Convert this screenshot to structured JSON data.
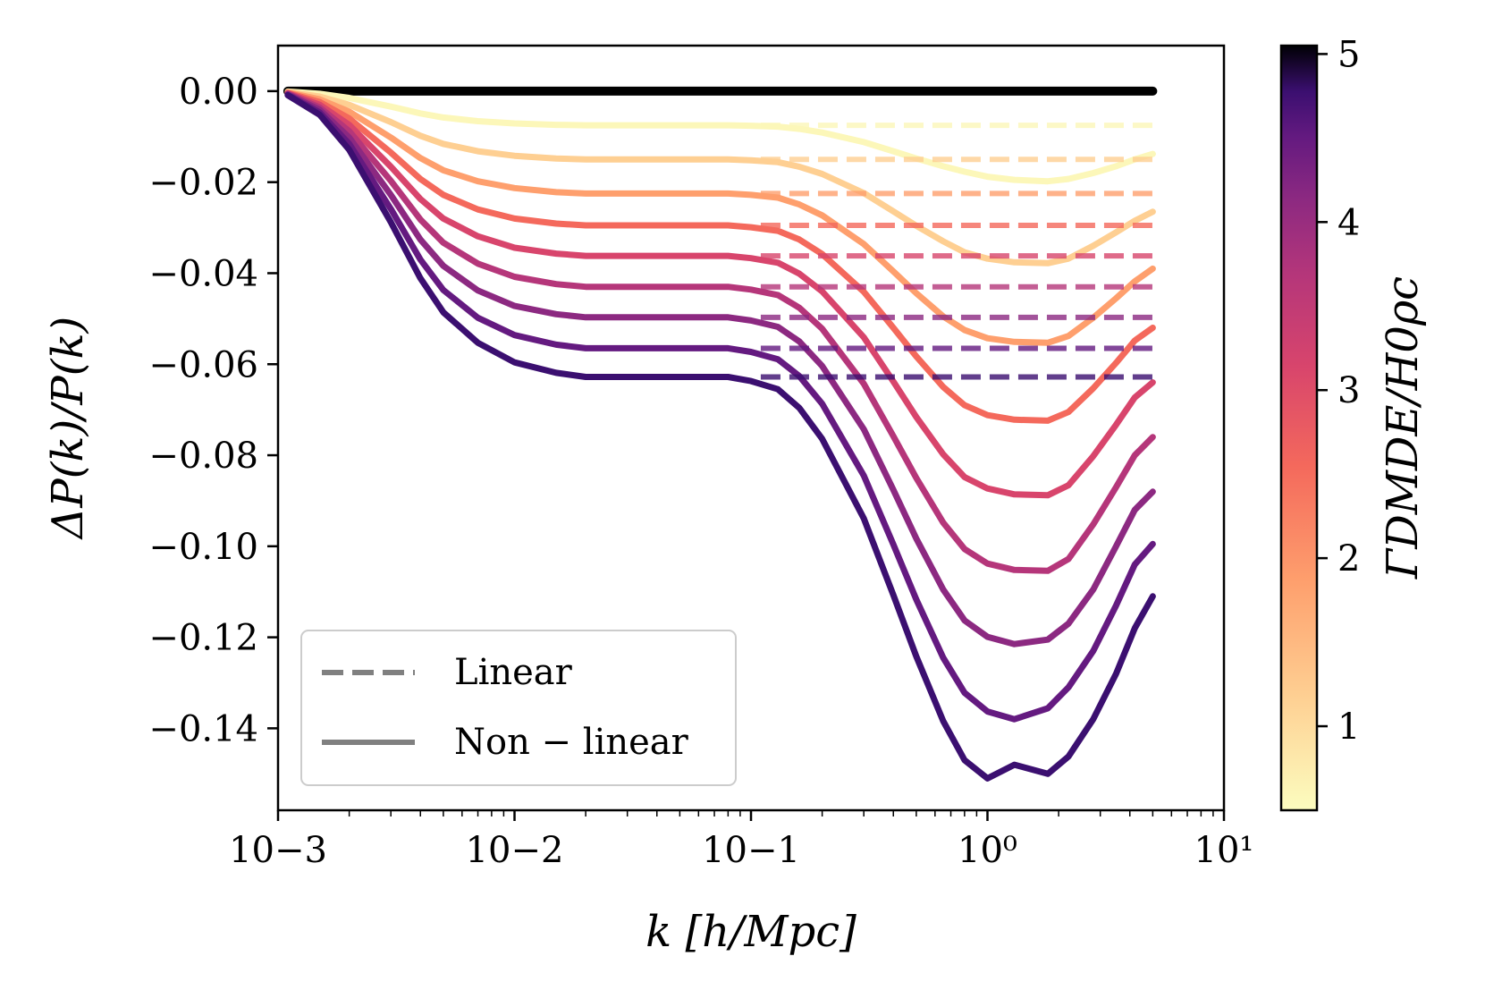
{
  "chart_data": {
    "type": "line",
    "xlabel": "k [h/Mpc]",
    "ylabel": "ΔP(k)/P(k)",
    "xscale": "log",
    "xlim": [
      0.001,
      10
    ],
    "ylim": [
      -0.158,
      0.01
    ],
    "x_tick_labels": [
      "10−3",
      "10−2",
      "10−1",
      "10⁰",
      "10¹"
    ],
    "y_ticks": [
      0.0,
      -0.02,
      -0.04,
      -0.06,
      -0.08,
      -0.1,
      -0.12,
      -0.14
    ],
    "y_tick_labels": [
      "0.00",
      "−0.02",
      "−0.04",
      "−0.06",
      "−0.08",
      "−0.10",
      "−0.12",
      "−0.14"
    ],
    "legend": {
      "position": "lower-left",
      "entries": [
        {
          "label": "Linear",
          "style": "dashed"
        },
        {
          "label": "Non − linear",
          "style": "solid"
        }
      ]
    },
    "colorbar": {
      "label": "ΓDMDE/H0ρc",
      "range": [
        0.5,
        5.05
      ],
      "tick_labels": [
        "1",
        "2",
        "3",
        "4",
        "5"
      ],
      "colormap": "magma_r"
    },
    "x_samples": [
      0.0011,
      0.0015,
      0.002,
      0.003,
      0.004,
      0.005,
      0.007,
      0.01,
      0.015,
      0.02,
      0.03,
      0.05,
      0.08,
      0.1,
      0.13,
      0.16,
      0.2,
      0.3,
      0.4,
      0.5,
      0.65,
      0.8,
      1.0,
      1.3,
      1.8,
      2.2,
      2.8,
      3.5,
      4.2,
      5.0
    ],
    "series": [
      {
        "gamma": 0.0,
        "color": "#000000",
        "linear_plateau": 0.0,
        "nonlinear": [
          0,
          0,
          0,
          0,
          0,
          0,
          0,
          0,
          0,
          0,
          0,
          0,
          0,
          0,
          0,
          0,
          0,
          0,
          0,
          0,
          0,
          0,
          0,
          0,
          0,
          0,
          0,
          0,
          0,
          0
        ]
      },
      {
        "gamma": 0.5,
        "color": "#fcf7b9",
        "linear_plateau": -0.0075,
        "nonlinear": [
          -0.0001,
          -0.0006,
          -0.0015,
          -0.0034,
          -0.0049,
          -0.0058,
          -0.0066,
          -0.0071,
          -0.0074,
          -0.0075,
          -0.0075,
          -0.0075,
          -0.0075,
          -0.0076,
          -0.0078,
          -0.0083,
          -0.0091,
          -0.0112,
          -0.0132,
          -0.0148,
          -0.0165,
          -0.0177,
          -0.0188,
          -0.0195,
          -0.0198,
          -0.0193,
          -0.018,
          -0.0165,
          -0.015,
          -0.0138
        ]
      },
      {
        "gamma": 1.0,
        "color": "#fecf92",
        "linear_plateau": -0.015,
        "nonlinear": [
          -0.0002,
          -0.0012,
          -0.003,
          -0.0068,
          -0.0098,
          -0.0116,
          -0.0132,
          -0.0142,
          -0.0148,
          -0.015,
          -0.015,
          -0.015,
          -0.015,
          -0.0152,
          -0.0156,
          -0.0166,
          -0.0182,
          -0.0224,
          -0.0264,
          -0.0296,
          -0.033,
          -0.0354,
          -0.0368,
          -0.0376,
          -0.0378,
          -0.0368,
          -0.034,
          -0.031,
          -0.0285,
          -0.0265
        ]
      },
      {
        "gamma": 1.5,
        "color": "#fe9f6d",
        "linear_plateau": -0.0225,
        "nonlinear": [
          -0.0003,
          -0.0018,
          -0.0045,
          -0.0102,
          -0.0147,
          -0.0174,
          -0.0198,
          -0.0213,
          -0.0222,
          -0.0225,
          -0.0225,
          -0.0225,
          -0.0225,
          -0.0228,
          -0.0234,
          -0.0249,
          -0.0273,
          -0.0336,
          -0.0396,
          -0.0444,
          -0.0495,
          -0.0525,
          -0.0543,
          -0.0551,
          -0.0553,
          -0.0538,
          -0.0498,
          -0.0455,
          -0.0418,
          -0.039
        ]
      },
      {
        "gamma": 2.0,
        "color": "#f4695c",
        "linear_plateau": -0.0295,
        "nonlinear": [
          -0.0004,
          -0.0024,
          -0.006,
          -0.0135,
          -0.0193,
          -0.0228,
          -0.026,
          -0.028,
          -0.0291,
          -0.0295,
          -0.0295,
          -0.0295,
          -0.0295,
          -0.0299,
          -0.0307,
          -0.0326,
          -0.0358,
          -0.0441,
          -0.052,
          -0.0583,
          -0.065,
          -0.069,
          -0.0712,
          -0.0722,
          -0.0724,
          -0.0705,
          -0.0653,
          -0.0597,
          -0.0548,
          -0.052
        ]
      },
      {
        "gamma": 2.5,
        "color": "#d8456c",
        "linear_plateau": -0.0362,
        "nonlinear": [
          -0.0005,
          -0.003,
          -0.0074,
          -0.0166,
          -0.0237,
          -0.028,
          -0.0319,
          -0.0344,
          -0.0357,
          -0.0362,
          -0.0362,
          -0.0362,
          -0.0362,
          -0.0367,
          -0.0377,
          -0.0401,
          -0.044,
          -0.0541,
          -0.0638,
          -0.0716,
          -0.0798,
          -0.0848,
          -0.0873,
          -0.0886,
          -0.0888,
          -0.0866,
          -0.0802,
          -0.0733,
          -0.0673,
          -0.064
        ]
      },
      {
        "gamma": 3.0,
        "color": "#b5367a",
        "linear_plateau": -0.043,
        "nonlinear": [
          -0.0006,
          -0.0036,
          -0.0088,
          -0.0197,
          -0.0282,
          -0.0333,
          -0.0379,
          -0.0408,
          -0.0424,
          -0.043,
          -0.043,
          -0.043,
          -0.043,
          -0.0436,
          -0.0448,
          -0.0476,
          -0.0522,
          -0.0643,
          -0.0758,
          -0.085,
          -0.0948,
          -0.1006,
          -0.1038,
          -0.1052,
          -0.1054,
          -0.1028,
          -0.0952,
          -0.087,
          -0.08,
          -0.076
        ]
      },
      {
        "gamma": 3.5,
        "color": "#8c2981",
        "linear_plateau": -0.0497,
        "nonlinear": [
          -0.0007,
          -0.0041,
          -0.0102,
          -0.0228,
          -0.0326,
          -0.0384,
          -0.0438,
          -0.0472,
          -0.049,
          -0.0497,
          -0.0497,
          -0.0497,
          -0.0497,
          -0.0504,
          -0.0518,
          -0.055,
          -0.0604,
          -0.0743,
          -0.0876,
          -0.0983,
          -0.1095,
          -0.1163,
          -0.1199,
          -0.1215,
          -0.1205,
          -0.117,
          -0.1095,
          -0.1,
          -0.092,
          -0.088
        ]
      },
      {
        "gamma": 4.0,
        "color": "#641a80",
        "linear_plateau": -0.0565,
        "nonlinear": [
          -0.0008,
          -0.0047,
          -0.0116,
          -0.0259,
          -0.037,
          -0.0437,
          -0.0498,
          -0.0536,
          -0.0557,
          -0.0565,
          -0.0565,
          -0.0565,
          -0.0565,
          -0.0573,
          -0.0589,
          -0.0626,
          -0.0687,
          -0.0845,
          -0.0996,
          -0.1117,
          -0.1245,
          -0.1322,
          -0.1363,
          -0.138,
          -0.1356,
          -0.131,
          -0.123,
          -0.113,
          -0.104,
          -0.0995
        ]
      },
      {
        "gamma": 4.5,
        "color": "#3b0f70",
        "linear_plateau": -0.0628,
        "nonlinear": [
          -0.0009,
          -0.0052,
          -0.0129,
          -0.0288,
          -0.0411,
          -0.0486,
          -0.0553,
          -0.0596,
          -0.0619,
          -0.0628,
          -0.0628,
          -0.0628,
          -0.0628,
          -0.0637,
          -0.0655,
          -0.0696,
          -0.0764,
          -0.0939,
          -0.1107,
          -0.1242,
          -0.1384,
          -0.147,
          -0.151,
          -0.148,
          -0.15,
          -0.1462,
          -0.138,
          -0.128,
          -0.118,
          -0.111
        ]
      }
    ]
  }
}
